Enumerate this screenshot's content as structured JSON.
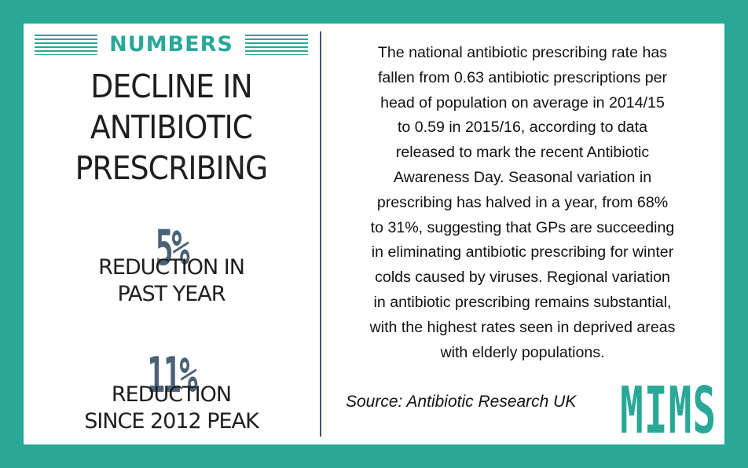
{
  "kicker": "NUMBERS",
  "headline": {
    "line1": "DECLINE IN",
    "line2": "ANTIBIOTIC",
    "line3": "PRESCRIBING"
  },
  "stats": [
    {
      "value": "5%",
      "label_line1": "REDUCTION IN",
      "label_line2": "PAST YEAR"
    },
    {
      "value": "11%",
      "label_line1": "REDUCTION",
      "label_line2": "SINCE 2012 PEAK"
    }
  ],
  "body_lines": [
    "The national antibiotic prescribing rate has",
    "fallen from 0.63 antibiotic prescriptions per",
    "head of population on average in 2014/15",
    "to 0.59 in 2015/16, according to data",
    "released to mark the recent Antibiotic",
    "Awareness Day. Seasonal variation in",
    "prescribing has halved in a year, from 68%",
    "to 31%, suggesting that GPs are succeeding",
    "in eliminating antibiotic prescribing for winter",
    "colds caused by viruses. Regional variation",
    "in antibiotic prescribing remains substantial,",
    "with the highest rates seen in deprived areas",
    "with elderly populations."
  ],
  "source": "Source: Antibiotic Research UK",
  "logo_text": "MIMS",
  "colors": {
    "accent": "#2aa897",
    "stat_number": "#4a6278",
    "divider": "#3d566e",
    "text": "#1e1e1e"
  }
}
